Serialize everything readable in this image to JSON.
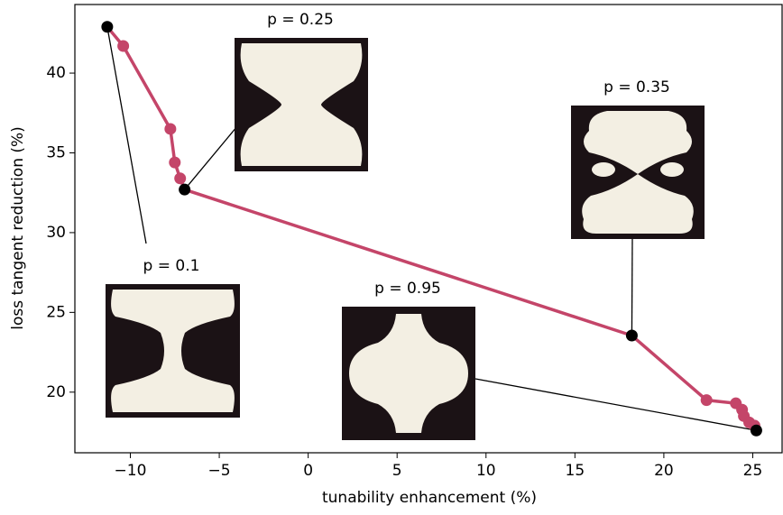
{
  "chart_data": {
    "type": "line",
    "x_label": "tunability enhancement (%)",
    "y_label": "loss tangent reduction (%)",
    "x": [
      -11.3,
      -10.4,
      -7.75,
      -7.5,
      -7.2,
      -6.95,
      18.2,
      22.4,
      24.05,
      24.4,
      24.5,
      24.8,
      25.1,
      25.2
    ],
    "series": [
      {
        "color": "#c44569",
        "values": [
          42.9,
          41.7,
          36.5,
          34.4,
          33.4,
          32.7,
          23.55,
          19.5,
          19.3,
          18.9,
          18.5,
          18.1,
          17.9,
          17.6
        ]
      }
    ],
    "highlight_color": "#000000",
    "annotations": [
      {
        "text": "p = 0.1"
      },
      {
        "text": "p = 0.25"
      },
      {
        "text": "p = 0.35"
      },
      {
        "text": "p = 0.95"
      }
    ],
    "xlim": [
      -13.12,
      26.65
    ],
    "ylim": [
      16.2,
      44.3
    ],
    "xticks": [
      {
        "value": -10,
        "label": "−10"
      },
      {
        "value": -5,
        "label": "−5"
      },
      0,
      5,
      10,
      15,
      20,
      25
    ],
    "yticks": [
      20,
      25,
      30,
      35,
      40
    ],
    "grid": false
  }
}
